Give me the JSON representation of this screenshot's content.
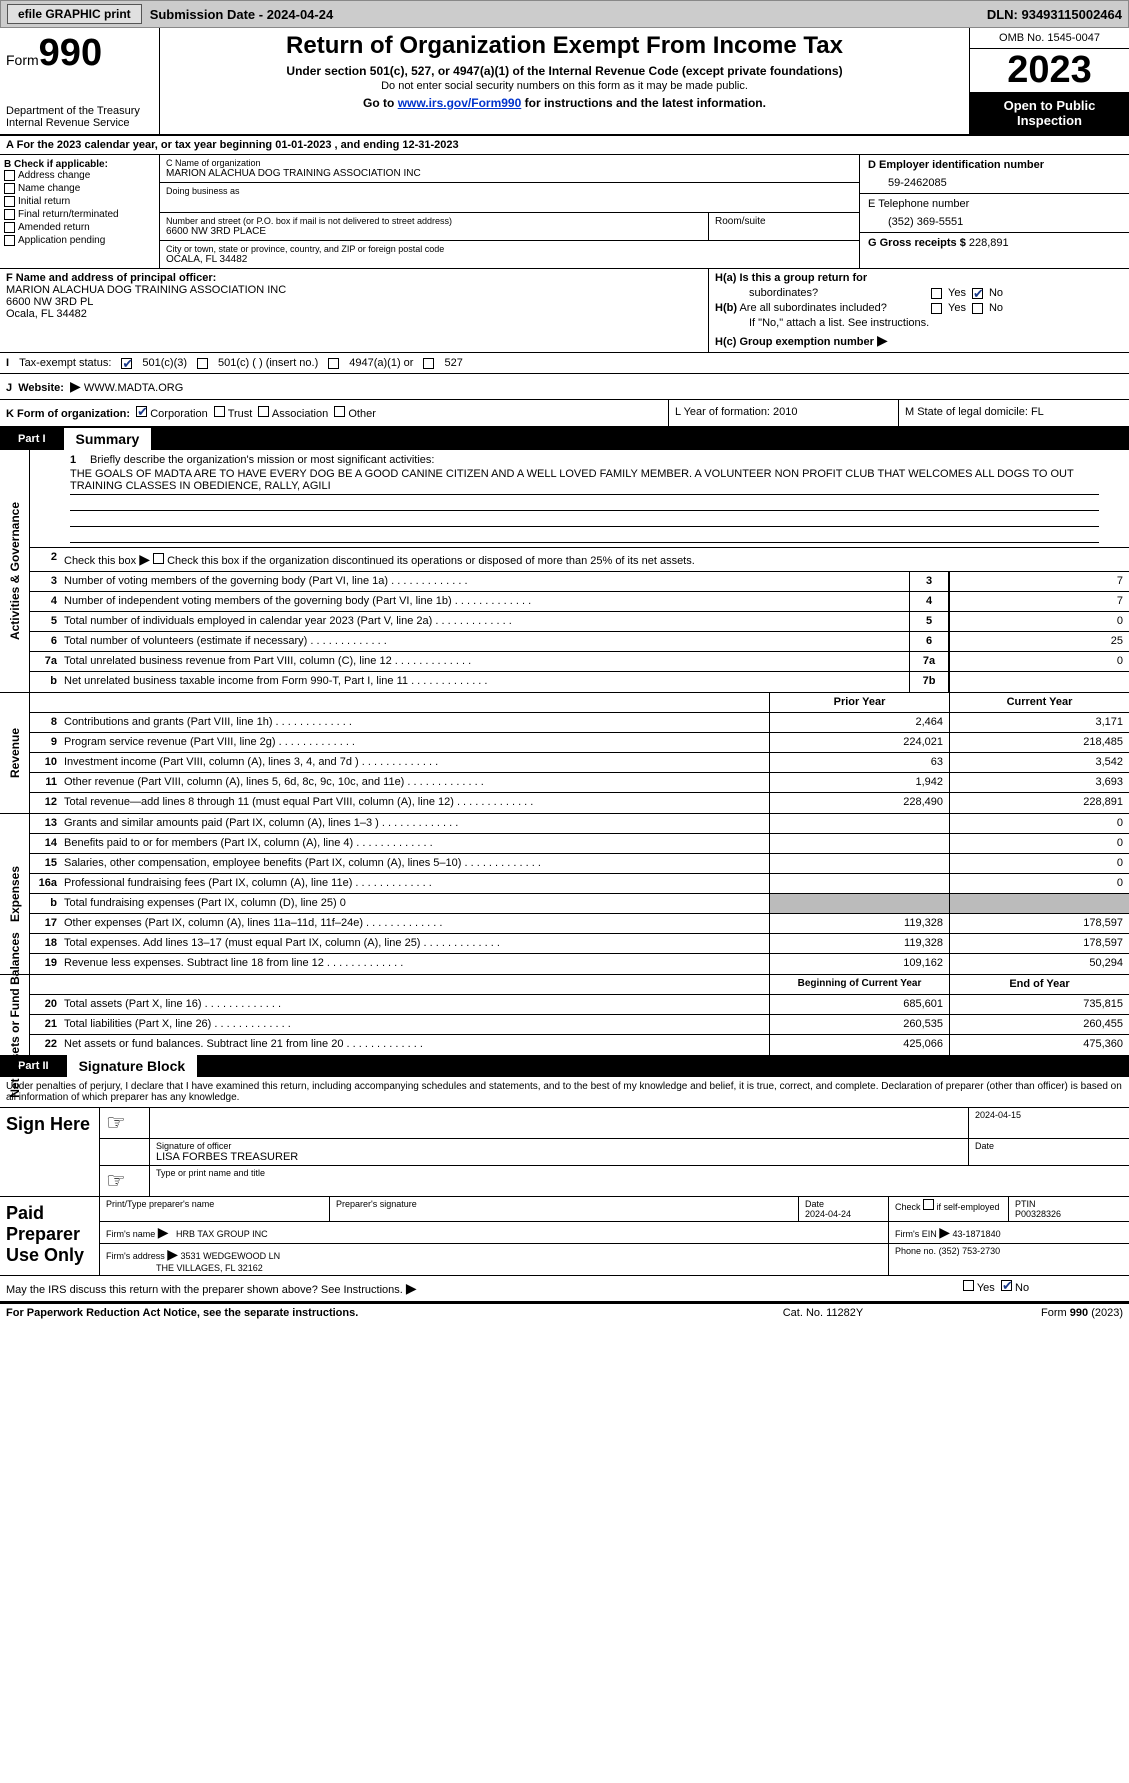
{
  "topbar": {
    "efile": "efile GRAPHIC print",
    "sub": "Submission Date - 2024-04-24",
    "dln": "DLN: 93493115002464"
  },
  "hdr": {
    "form": "Form",
    "n990": "990",
    "title": "Return of Organization Exempt From Income Tax",
    "sub1": "Under section 501(c), 527, or 4947(a)(1) of the Internal Revenue Code (except private foundations)",
    "sub2": "Do not enter social security numbers on this form as it may be made public.",
    "goto": "Go to ",
    "gotolink": "www.irs.gov/Form990",
    "goto2": " for instructions and the latest information.",
    "dept": "Department of the Treasury",
    "irs": "Internal Revenue Service",
    "omb": "OMB No. 1545-0047",
    "year": "2023",
    "otp": "Open to Public Inspection"
  },
  "A": {
    "text": "For the 2023 calendar year, or tax year beginning 01-01-2023    , and ending 12-31-2023"
  },
  "B": {
    "head": "B Check if applicable:",
    "items": [
      "Address change",
      "Name change",
      "Initial return",
      "Final return/terminated",
      "Amended return",
      "Application pending"
    ]
  },
  "C": {
    "nameLbl": "C Name of organization",
    "name": "MARION ALACHUA DOG TRAINING ASSOCIATION INC",
    "dbaLbl": "Doing business as",
    "dba": "",
    "streetLbl": "Number and street (or P.O. box if mail is not delivered to street address)",
    "street": "6600 NW 3RD PLACE",
    "roomLbl": "Room/suite",
    "cityLbl": "City or town, state or province, country, and ZIP or foreign postal code",
    "city": "OCALA, FL  34482"
  },
  "D": {
    "lbl": "D Employer identification number",
    "val": "59-2462085"
  },
  "E": {
    "lbl": "E Telephone number",
    "val": "(352) 369-5551"
  },
  "G": {
    "lbl": "G Gross receipts $",
    "val": "228,891"
  },
  "F": {
    "lbl": "F  Name and address of principal officer:",
    "l1": "MARION ALACHUA DOG TRAINING ASSOCIATION INC",
    "l2": "6600 NW 3RD PL",
    "l3": "Ocala, FL  34482"
  },
  "H": {
    "a1": "H(a)  Is this a group return for",
    "a2": "subordinates?",
    "yes": "Yes",
    "no": "No",
    "b": "H(b)  Are all subordinates included?",
    "bnote": "If \"No,\" attach a list. See instructions.",
    "c": "H(c)  Group exemption number ",
    "ha_yes": false,
    "ha_no": true,
    "hb_yes": false,
    "hb_no": false
  },
  "I": {
    "lbl": "Tax-exempt status:",
    "c3": "501(c)(3)",
    "c": "501(c) (  ) (insert no.)",
    "a1": "4947(a)(1) or",
    "s527": "527",
    "c3_checked": true
  },
  "J": {
    "lbl": "Website: ",
    "val": "WWW.MADTA.ORG"
  },
  "K": {
    "lbl": "K Form of organization:",
    "opts": [
      "Corporation",
      "Trust",
      "Association",
      "Other"
    ],
    "checked": 0
  },
  "L": {
    "lbl": "L Year of formation: 2010"
  },
  "M": {
    "lbl": "M State of legal domicile: FL"
  },
  "P1": {
    "pn": "Part I",
    "pt": "Summary"
  },
  "mission": {
    "lead": "Briefly describe the organization's mission or most significant activities:",
    "text": "THE GOALS OF MADTA ARE TO HAVE EVERY DOG BE A GOOD CANINE CITIZEN AND A WELL LOVED FAMILY MEMBER. A VOLUNTEER NON PROFIT CLUB THAT WELCOMES ALL DOGS TO OUT TRAINING CLASSES IN OBEDIENCE, RALLY, AGILI"
  },
  "gov": {
    "vlabel": "Activities & Governance",
    "l2": "Check this box      if the organization discontinued its operations or disposed of more than 25% of its net assets.",
    "rows": [
      {
        "n": "3",
        "d": "Number of voting members of the governing body (Part VI, line 1a)",
        "box": "3",
        "v": "7"
      },
      {
        "n": "4",
        "d": "Number of independent voting members of the governing body (Part VI, line 1b)",
        "box": "4",
        "v": "7"
      },
      {
        "n": "5",
        "d": "Total number of individuals employed in calendar year 2023 (Part V, line 2a)",
        "box": "5",
        "v": "0"
      },
      {
        "n": "6",
        "d": "Total number of volunteers (estimate if necessary)",
        "box": "6",
        "v": "25"
      },
      {
        "n": "7a",
        "d": "Total unrelated business revenue from Part VIII, column (C), line 12",
        "box": "7a",
        "v": "0"
      },
      {
        "n": "b",
        "d": "Net unrelated business taxable income from Form 990-T, Part I, line 11",
        "box": "7b",
        "v": ""
      }
    ]
  },
  "rev": {
    "vlabel": "Revenue",
    "h1": "Prior Year",
    "h2": "Current Year",
    "rows": [
      {
        "n": "8",
        "d": "Contributions and grants (Part VIII, line 1h)",
        "c1": "2,464",
        "c2": "3,171"
      },
      {
        "n": "9",
        "d": "Program service revenue (Part VIII, line 2g)",
        "c1": "224,021",
        "c2": "218,485"
      },
      {
        "n": "10",
        "d": "Investment income (Part VIII, column (A), lines 3, 4, and 7d )",
        "c1": "63",
        "c2": "3,542"
      },
      {
        "n": "11",
        "d": "Other revenue (Part VIII, column (A), lines 5, 6d, 8c, 9c, 10c, and 11e)",
        "c1": "1,942",
        "c2": "3,693"
      },
      {
        "n": "12",
        "d": "Total revenue—add lines 8 through 11 (must equal Part VIII, column (A), line 12)",
        "c1": "228,490",
        "c2": "228,891"
      }
    ]
  },
  "exp": {
    "vlabel": "Expenses",
    "rows": [
      {
        "n": "13",
        "d": "Grants and similar amounts paid (Part IX, column (A), lines 1–3 )",
        "c1": "",
        "c2": "0"
      },
      {
        "n": "14",
        "d": "Benefits paid to or for members (Part IX, column (A), line 4)",
        "c1": "",
        "c2": "0"
      },
      {
        "n": "15",
        "d": "Salaries, other compensation, employee benefits (Part IX, column (A), lines 5–10)",
        "c1": "",
        "c2": "0"
      },
      {
        "n": "16a",
        "d": "Professional fundraising fees (Part IX, column (A), line 11e)",
        "c1": "",
        "c2": "0"
      },
      {
        "n": "b",
        "d": "Total fundraising expenses (Part IX, column (D), line 25) 0",
        "shade": true
      },
      {
        "n": "17",
        "d": "Other expenses (Part IX, column (A), lines 11a–11d, 11f–24e)",
        "c1": "119,328",
        "c2": "178,597"
      },
      {
        "n": "18",
        "d": "Total expenses. Add lines 13–17 (must equal Part IX, column (A), line 25)",
        "c1": "119,328",
        "c2": "178,597"
      },
      {
        "n": "19",
        "d": "Revenue less expenses. Subtract line 18 from line 12",
        "c1": "109,162",
        "c2": "50,294"
      }
    ]
  },
  "net": {
    "vlabel": "Net Assets or Fund Balances",
    "h1": "Beginning of Current Year",
    "h2": "End of Year",
    "rows": [
      {
        "n": "20",
        "d": "Total assets (Part X, line 16)",
        "c1": "685,601",
        "c2": "735,815"
      },
      {
        "n": "21",
        "d": "Total liabilities (Part X, line 26)",
        "c1": "260,535",
        "c2": "260,455"
      },
      {
        "n": "22",
        "d": "Net assets or fund balances. Subtract line 21 from line 20",
        "c1": "425,066",
        "c2": "475,360"
      }
    ]
  },
  "P2": {
    "pn": "Part II",
    "pt": "Signature Block"
  },
  "sig": {
    "decl": "Under penalties of perjury, I declare that I have examined this return, including accompanying schedules and statements, and to the best of my knowledge and belief, it is true, correct, and complete. Declaration of preparer (other than officer) is based on all information of which preparer has any knowledge.",
    "signHere": "Sign Here",
    "sigOff": "Signature of officer",
    "sigDate": "Date",
    "date1": "2024-04-15",
    "officer": "LISA FORBES  TREASURER",
    "typeLbl": "Type or print name and title",
    "paid": "Paid Preparer Use Only",
    "pName": "Print/Type preparer's name",
    "pSig": "Preparer's signature",
    "pDate": "Date",
    "pDateV": "2024-04-24",
    "pCheck": "Check         if self-employed",
    "pPtin": "PTIN",
    "pPtinV": "P00328326",
    "firmName": "Firm's name",
    "firmNameV": "HRB TAX GROUP INC",
    "firmEin": "Firm's EIN",
    "firmEinV": "43-1871840",
    "firmAddr": "Firm's address",
    "firmAddrV1": "3531 WEDGEWOOD LN",
    "firmAddrV2": "THE VILLAGES, FL  32162",
    "phone": "Phone no.",
    "phoneV": "(352) 753-2730",
    "discuss": "May the IRS discuss this return with the preparer shown above? See Instructions.",
    "dYes": false,
    "dNo": true
  },
  "ftr": {
    "f1": "For Paperwork Reduction Act Notice, see the separate instructions.",
    "f2": "Cat. No. 11282Y",
    "f3": "Form 990 (2023)"
  }
}
